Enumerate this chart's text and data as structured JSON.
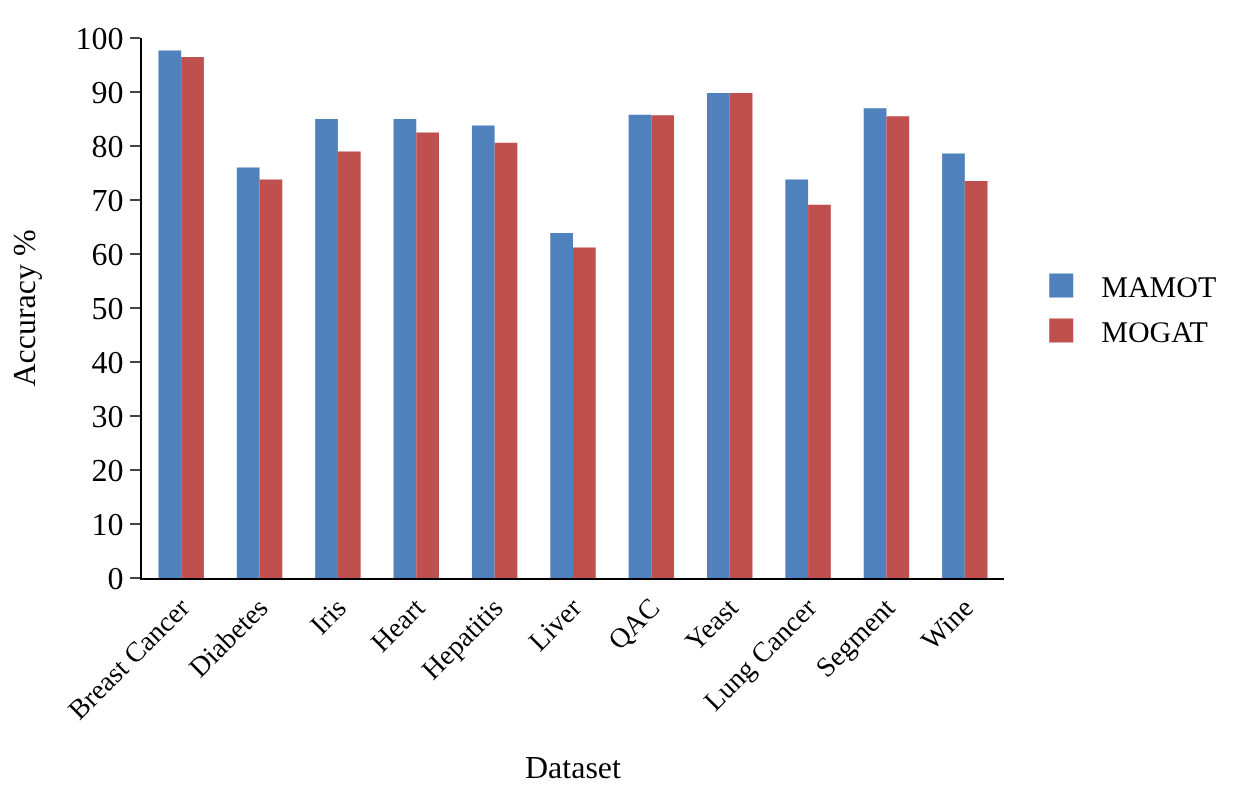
{
  "chart_data": {
    "type": "bar",
    "xlabel": "Dataset",
    "ylabel": "Accuracy %",
    "categories": [
      "Breast Cancer",
      "Diabetes",
      "Iris",
      "Heart",
      "Hepatitis",
      "Liver",
      "QAC",
      "Yeast",
      "Lung Cancer",
      "Segment",
      "Wine"
    ],
    "series": [
      {
        "name": "MAMOT",
        "color": "#4f81bd",
        "values": [
          97.7,
          76.0,
          85.0,
          85.0,
          83.8,
          63.9,
          85.8,
          89.8,
          73.8,
          87.0,
          78.6
        ]
      },
      {
        "name": "MOGAT",
        "color": "#c0504d",
        "values": [
          96.5,
          73.8,
          79.0,
          82.5,
          80.6,
          61.2,
          85.7,
          89.8,
          69.1,
          85.5,
          73.5
        ]
      }
    ],
    "ylim": [
      0,
      100
    ],
    "yticks": [
      0,
      10,
      20,
      30,
      40,
      50,
      60,
      70,
      80,
      90,
      100
    ],
    "legend": "right"
  }
}
